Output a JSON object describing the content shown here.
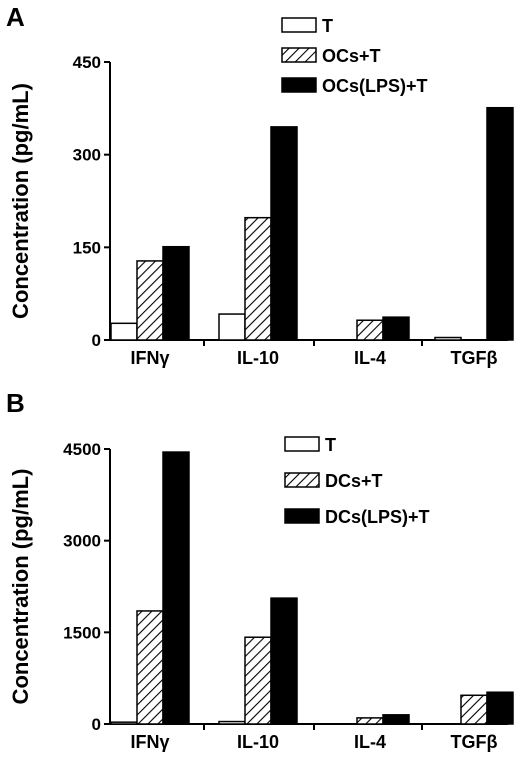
{
  "chart_data": [
    {
      "panel": "A",
      "type": "bar",
      "ylabel": "Concentration (pg/mL)",
      "categories": [
        "IFNγ",
        "IL-10",
        "IL-4",
        "TGFβ"
      ],
      "ylim": [
        0,
        450
      ],
      "yticks": [
        "0",
        "150",
        "300",
        "450"
      ],
      "legend_position": "top-right",
      "series": [
        {
          "name": "T",
          "fill": "white",
          "values": [
            27,
            42,
            0,
            4
          ]
        },
        {
          "name": "OCs+T",
          "fill": "hatched",
          "values": [
            128,
            198,
            32,
            0
          ]
        },
        {
          "name": "OCs(LPS)+T",
          "fill": "black",
          "values": [
            151,
            345,
            37,
            376
          ]
        }
      ]
    },
    {
      "panel": "B",
      "type": "bar",
      "ylabel": "Concentration (pg/mL)",
      "categories": [
        "IFNγ",
        "IL-10",
        "IL-4",
        "TGFβ"
      ],
      "ylim": [
        0,
        4500
      ],
      "yticks": [
        "0",
        "1500",
        "3000",
        "4500"
      ],
      "legend_position": "top-right",
      "series": [
        {
          "name": "T",
          "fill": "white",
          "values": [
            30,
            40,
            0,
            0
          ]
        },
        {
          "name": "DCs+T",
          "fill": "hatched",
          "values": [
            1850,
            1420,
            100,
            470
          ]
        },
        {
          "name": "DCs(LPS)+T",
          "fill": "black",
          "values": [
            4450,
            2060,
            150,
            520
          ]
        }
      ]
    }
  ]
}
